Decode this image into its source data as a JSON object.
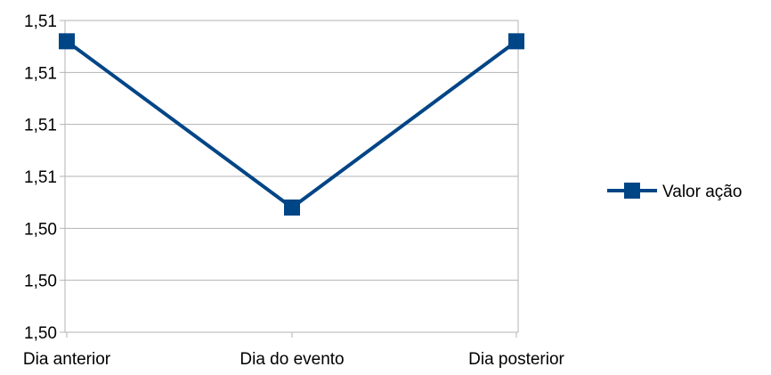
{
  "chart_data": {
    "type": "line",
    "title": "",
    "xlabel": "",
    "ylabel": "",
    "categories": [
      "Dia anterior",
      "Dia do evento",
      "Dia posterior"
    ],
    "y_ticks": [
      1.5,
      1.502,
      1.504,
      1.506,
      1.508,
      1.51,
      1.512
    ],
    "y_tick_labels": [
      "1,50",
      "1,50",
      "1,50",
      "1,51",
      "1,51",
      "1,51",
      "1,51"
    ],
    "ylim": [
      1.5,
      1.512
    ],
    "series": [
      {
        "name": "Valor ação",
        "values": [
          1.5112,
          1.5048,
          1.5112
        ],
        "color": "#004586",
        "marker": "square"
      }
    ],
    "grid": {
      "horizontal": true,
      "vertical": false
    },
    "legend": {
      "position": "right"
    }
  }
}
